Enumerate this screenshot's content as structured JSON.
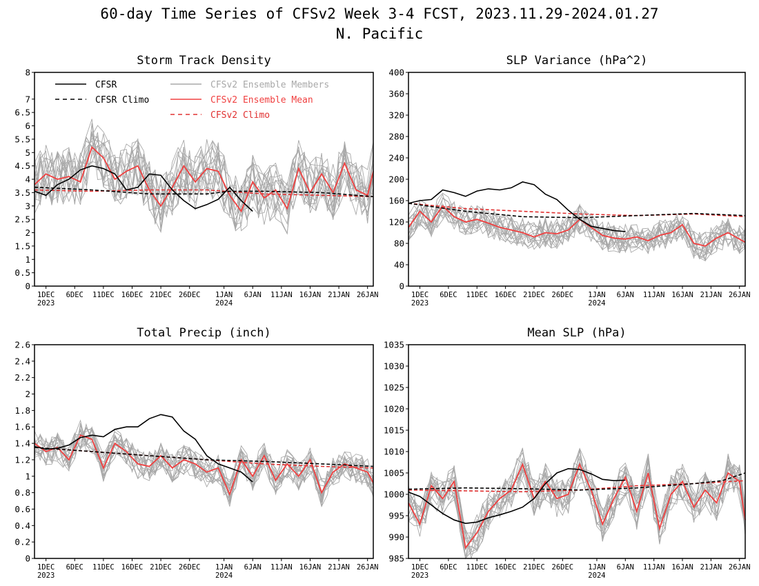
{
  "title_line1": "60-day Time Series of CFSv2 Week 3-4 FCST, 2023.11.29-2024.01.27",
  "title_line2": "N. Pacific",
  "legend": {
    "cfsr": "CFSR",
    "cfsr_climo": "CFSR Climo",
    "members": "CFSv2 Ensemble Members",
    "mean": "CFSv2 Ensemble Mean",
    "cfsv2_climo": "CFSv2 Climo"
  },
  "colors": {
    "cfsr": "#000000",
    "cfsr_climo": "#000000",
    "members": "#a8a8a8",
    "mean": "#f04040",
    "cfsv2_climo": "#e03030"
  },
  "x_labels": [
    "1DEC",
    "6DEC",
    "11DEC",
    "16DEC",
    "21DEC",
    "26DEC",
    "1JAN",
    "6JAN",
    "11JAN",
    "16JAN",
    "21JAN",
    "26JAN"
  ],
  "x_years": [
    "2023",
    "2024"
  ],
  "chart_data": [
    {
      "type": "line",
      "title": "Storm Track Density",
      "ylim": [
        0,
        8
      ],
      "yticks": [
        "0",
        "0.5",
        "1",
        "1.5",
        "2",
        "2.5",
        "3",
        "3.5",
        "4",
        "4.5",
        "5",
        "5.5",
        "6",
        "6.5",
        "7",
        "8"
      ],
      "yticks_values": [
        0,
        0.5,
        1,
        1.5,
        2,
        2.5,
        3,
        3.5,
        4,
        4.5,
        5,
        5.5,
        6,
        6.5,
        7,
        8
      ],
      "series": [
        {
          "name": "CFSR",
          "x": [
            0,
            2,
            4,
            6,
            8,
            10,
            12,
            14,
            16,
            18,
            20,
            22,
            24,
            26,
            28,
            30,
            32,
            34,
            36,
            38
          ],
          "values": [
            3.55,
            3.4,
            3.8,
            4.0,
            4.35,
            4.5,
            4.4,
            4.2,
            3.6,
            3.7,
            4.2,
            4.15,
            3.6,
            3.2,
            2.9,
            3.05,
            3.25,
            3.7,
            3.2,
            2.8
          ]
        },
        {
          "name": "CFSR Climo",
          "x": [
            0,
            10,
            20,
            30,
            34,
            40,
            50,
            59
          ],
          "values": [
            3.7,
            3.6,
            3.45,
            3.45,
            3.55,
            3.55,
            3.5,
            3.35
          ]
        },
        {
          "name": "CFSv2 Ensemble Mean",
          "x": [
            0,
            2,
            4,
            6,
            8,
            10,
            12,
            14,
            16,
            18,
            20,
            22,
            24,
            26,
            28,
            30,
            32,
            34,
            36,
            38,
            40,
            42,
            44,
            46,
            48,
            50,
            52,
            54,
            56,
            58,
            59
          ],
          "values": [
            3.8,
            4.2,
            4.0,
            4.1,
            3.9,
            5.2,
            4.8,
            4.0,
            4.3,
            4.5,
            3.6,
            3.0,
            3.7,
            4.5,
            3.9,
            4.4,
            4.3,
            3.4,
            2.8,
            3.9,
            3.3,
            3.6,
            2.9,
            4.4,
            3.5,
            4.2,
            3.5,
            4.6,
            3.6,
            3.4,
            4.3
          ]
        },
        {
          "name": "CFSv2 Climo",
          "x": [
            0,
            10,
            20,
            30,
            40,
            50,
            59
          ],
          "values": [
            3.6,
            3.55,
            3.6,
            3.6,
            3.45,
            3.4,
            3.35
          ]
        }
      ],
      "members": {
        "count": 16,
        "spread": 1.1
      }
    },
    {
      "type": "line",
      "title": "SLP Variance (hPa^2)",
      "ylim": [
        0,
        400
      ],
      "yticks": [
        "0",
        "40",
        "80",
        "120",
        "160",
        "200",
        "240",
        "280",
        "320",
        "360",
        "400"
      ],
      "yticks_values": [
        0,
        40,
        80,
        120,
        160,
        200,
        240,
        280,
        320,
        360,
        400
      ],
      "series": [
        {
          "name": "CFSR",
          "x": [
            0,
            2,
            4,
            6,
            8,
            10,
            12,
            14,
            16,
            18,
            20,
            22,
            24,
            26,
            28,
            30,
            32,
            34,
            36,
            38
          ],
          "values": [
            155,
            160,
            162,
            180,
            175,
            168,
            178,
            182,
            180,
            184,
            195,
            190,
            172,
            162,
            142,
            125,
            112,
            108,
            104,
            102
          ]
        },
        {
          "name": "CFSR Climo",
          "x": [
            0,
            10,
            20,
            30,
            40,
            50,
            59
          ],
          "values": [
            155,
            140,
            130,
            128,
            132,
            136,
            132
          ]
        },
        {
          "name": "CFSv2 Ensemble Mean",
          "x": [
            0,
            2,
            4,
            6,
            8,
            10,
            12,
            14,
            16,
            18,
            20,
            22,
            24,
            26,
            28,
            30,
            32,
            34,
            36,
            38,
            40,
            42,
            44,
            46,
            48,
            50,
            52,
            54,
            56,
            58,
            59
          ],
          "values": [
            110,
            140,
            120,
            150,
            130,
            120,
            125,
            118,
            110,
            105,
            100,
            92,
            100,
            98,
            105,
            125,
            110,
            95,
            90,
            88,
            92,
            85,
            95,
            100,
            115,
            80,
            75,
            90,
            100,
            88,
            82
          ]
        },
        {
          "name": "CFSv2 Climo",
          "x": [
            0,
            10,
            20,
            30,
            40,
            50,
            59
          ],
          "values": [
            155,
            145,
            140,
            135,
            132,
            135,
            130
          ]
        }
      ],
      "members": {
        "count": 16,
        "spread": 28
      }
    },
    {
      "type": "line",
      "title": "Total Precip (inch)",
      "ylim": [
        0,
        2.6
      ],
      "yticks": [
        "0",
        "0.2",
        "0.4",
        "0.6",
        "0.8",
        "1",
        "1.2",
        "1.4",
        "1.6",
        "1.8",
        "2",
        "2.2",
        "2.4",
        "2.6"
      ],
      "yticks_values": [
        0,
        0.2,
        0.4,
        0.6,
        0.8,
        1,
        1.2,
        1.4,
        1.6,
        1.8,
        2,
        2.2,
        2.4,
        2.6
      ],
      "series": [
        {
          "name": "CFSR",
          "x": [
            0,
            2,
            4,
            6,
            8,
            10,
            12,
            14,
            16,
            18,
            20,
            22,
            24,
            26,
            28,
            30,
            32,
            34,
            36,
            38
          ],
          "values": [
            1.36,
            1.33,
            1.34,
            1.38,
            1.47,
            1.5,
            1.48,
            1.57,
            1.6,
            1.6,
            1.7,
            1.75,
            1.72,
            1.55,
            1.45,
            1.25,
            1.15,
            1.1,
            1.05,
            0.93
          ]
        },
        {
          "name": "CFSR Climo",
          "x": [
            0,
            10,
            20,
            30,
            40,
            50,
            59
          ],
          "values": [
            1.35,
            1.3,
            1.25,
            1.2,
            1.18,
            1.15,
            1.12
          ]
        },
        {
          "name": "CFSv2 Ensemble Mean",
          "x": [
            0,
            2,
            4,
            6,
            8,
            10,
            12,
            14,
            16,
            18,
            20,
            22,
            24,
            26,
            28,
            30,
            32,
            34,
            36,
            38,
            40,
            42,
            44,
            46,
            48,
            50,
            52,
            54,
            56,
            58,
            59
          ],
          "values": [
            1.4,
            1.3,
            1.35,
            1.2,
            1.5,
            1.45,
            1.1,
            1.4,
            1.3,
            1.15,
            1.12,
            1.25,
            1.1,
            1.2,
            1.15,
            1.05,
            1.1,
            0.78,
            1.2,
            1.0,
            1.25,
            0.95,
            1.15,
            1.0,
            1.2,
            0.8,
            1.05,
            1.15,
            1.1,
            1.05,
            0.92
          ]
        },
        {
          "name": "CFSv2 Climo",
          "x": [
            0,
            10,
            20,
            30,
            40,
            50,
            59
          ],
          "values": [
            1.35,
            1.3,
            1.25,
            1.2,
            1.15,
            1.12,
            1.1
          ]
        }
      ],
      "members": {
        "count": 16,
        "spread": 0.18
      }
    },
    {
      "type": "line",
      "title": "Mean SLP (hPa)",
      "ylim": [
        985,
        1035
      ],
      "yticks": [
        "985",
        "990",
        "995",
        "1000",
        "1005",
        "1010",
        "1015",
        "1020",
        "1025",
        "1030",
        "1035"
      ],
      "yticks_values": [
        985,
        990,
        995,
        1000,
        1005,
        1010,
        1015,
        1020,
        1025,
        1030,
        1035
      ],
      "series": [
        {
          "name": "CFSR",
          "x": [
            0,
            2,
            4,
            6,
            8,
            10,
            12,
            14,
            16,
            18,
            20,
            22,
            24,
            26,
            28,
            30,
            32,
            34,
            36,
            38
          ],
          "values": [
            1000.5,
            999.5,
            997.5,
            995.5,
            994,
            993.2,
            993.5,
            994.5,
            995.2,
            996,
            997,
            999,
            1002.5,
            1005,
            1006,
            1005.8,
            1004.8,
            1003.5,
            1003.2,
            1003.3
          ]
        },
        {
          "name": "CFSR Climo",
          "x": [
            0,
            10,
            20,
            30,
            40,
            50,
            55,
            59
          ],
          "values": [
            1001.2,
            1001.5,
            1001.3,
            1001,
            1001.5,
            1002.5,
            1003.2,
            1005
          ]
        },
        {
          "name": "CFSv2 Ensemble Mean",
          "x": [
            0,
            2,
            4,
            6,
            8,
            10,
            12,
            14,
            16,
            18,
            20,
            22,
            24,
            26,
            28,
            30,
            32,
            34,
            36,
            38,
            40,
            42,
            44,
            46,
            48,
            50,
            52,
            54,
            56,
            58,
            59
          ],
          "values": [
            998,
            993,
            1002,
            999,
            1003,
            987.5,
            991,
            996,
            999,
            1001,
            1007,
            999,
            1003,
            999,
            1000,
            1007,
            1001,
            993,
            999,
            1004,
            996,
            1005,
            992,
            1000,
            1003,
            997,
            1001,
            998,
            1005,
            1003,
            994
          ]
        },
        {
          "name": "CFSv2 Climo",
          "x": [
            0,
            10,
            20,
            30,
            40,
            50,
            59
          ],
          "values": [
            1001,
            1000.8,
            1000.6,
            1001,
            1002,
            1002.5,
            1003.2
          ]
        }
      ],
      "members": {
        "count": 16,
        "spread": 4.5
      }
    }
  ]
}
